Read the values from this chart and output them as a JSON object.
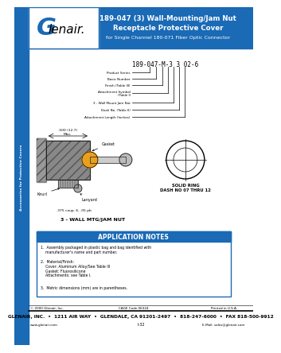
{
  "title_line1": "189-047 (3) Wall-Mounting/Jam Nut",
  "title_line2": "Receptacle Protective Cover",
  "title_line3": "for Single Channel 180-071 Fiber Optic Connector",
  "header_bg": "#1a6ab5",
  "logo_G_color": "#1a6ab5",
  "sidebar_bg": "#1a6ab5",
  "part_number": "189-047-M-3 3 02-6",
  "callout_labels": [
    "Product Series",
    "Basic Number",
    "Finish (Table III)",
    "Attachment Symbol\n(Table I)",
    "3 - Wall Mount Jam Nut",
    "Dash No. (Table II)",
    "Attachment Length (Inches)"
  ],
  "diagram_label": "3 - WALL MTG/JAM NUT",
  "solid_ring_label": "SOLID RING\nDASH NO 07 THRU 12",
  "gasket_label": "Gasket",
  "knurl_label": "Knurl",
  "lanyard_label": "Lanyard",
  "dim_label": ".500 (12.7)\nMax.",
  "thread_label": ".375 coup. 6, .05 pb",
  "app_notes_title": "APPLICATION NOTES",
  "app_notes_bg": "#1a6ab5",
  "app_note_1": "1.  Assembly packaged in plastic bag and bag identified with\n    manufacturer's name and part number.",
  "app_note_2": "2.  Material/Finish:\n    Cover: Aluminum Alloy/See Table III\n    Gasket: Fluorosilicone\n    Attachments: see Table I.",
  "app_note_3": "3.  Metric dimensions (mm) are in parentheses.",
  "footer_copy": "© 2000 Glenair, Inc.",
  "footer_cage": "CAGE Code 06324",
  "footer_printed": "Printed in U.S.A.",
  "footer_address": "GLENAIR, INC.  •  1211 AIR WAY  •  GLENDALE, CA 91201-2497  •  818-247-6000  •  FAX 818-500-9912",
  "footer_web": "www.glenair.com",
  "footer_page": "I-32",
  "footer_email": "E-Mail: sales@glenair.com",
  "sidebar_text": "Accessories for Protective Covers",
  "page_bg": "#ffffff"
}
